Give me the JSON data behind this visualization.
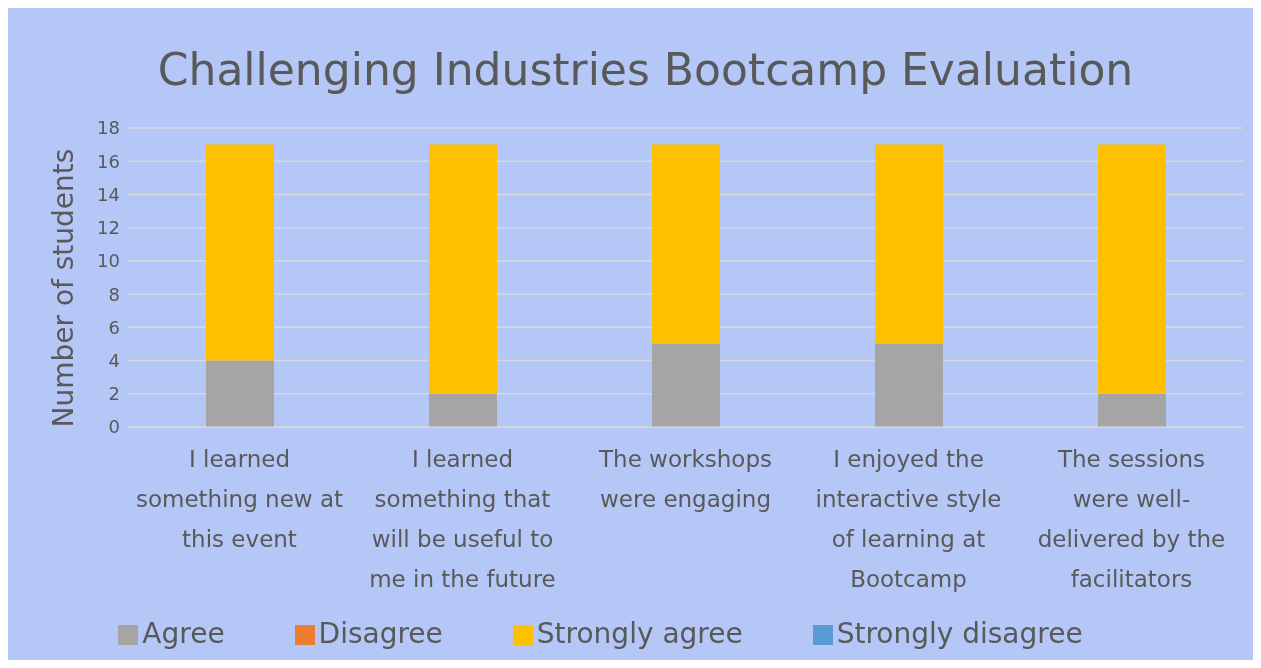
{
  "chart_data": {
    "type": "bar",
    "stacked": true,
    "title": "Challenging Industries Bootcamp Evaluation",
    "ylabel": "Number of students",
    "categories": [
      "I learned something new at this event",
      "I learned something that will be useful to me in the future",
      "The workshops were engaging",
      "I enjoyed the interactive style of learning at Bootcamp",
      "The sessions were well-delivered by the facilitators"
    ],
    "series": [
      {
        "name": "Strongly disagree",
        "color": "#5b9bd5",
        "values": [
          0,
          0,
          0,
          0,
          0
        ]
      },
      {
        "name": "Disagree",
        "color": "#ed7d31",
        "values": [
          0,
          0,
          0,
          0,
          0
        ]
      },
      {
        "name": "Agree",
        "color": "#a5a5a5",
        "values": [
          4,
          2,
          5,
          5,
          2
        ]
      },
      {
        "name": "Strongly agree",
        "color": "#ffc000",
        "values": [
          13,
          15,
          12,
          12,
          15
        ]
      }
    ],
    "ylim": [
      0,
      18
    ],
    "yticks": [
      0,
      2,
      4,
      6,
      8,
      10,
      12,
      14,
      16,
      18
    ],
    "grid": "y",
    "legend": "bottom"
  }
}
